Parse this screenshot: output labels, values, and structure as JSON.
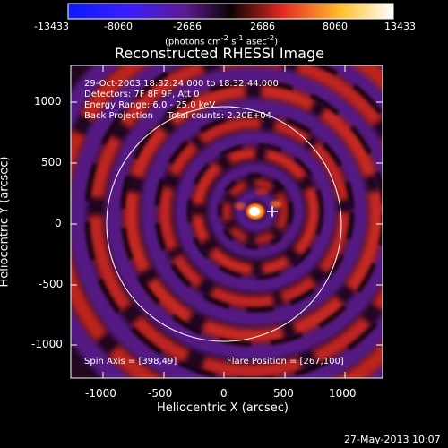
{
  "colorbar": {
    "ticks": [
      "-13433",
      "-8060",
      "-2686",
      "2686",
      "8060",
      "13433"
    ],
    "units_html": "(photons cm<sup>-2</sup> s<sup>-1</sup> asec<sup>-2</sup>)",
    "colors": {
      "min": "#0a1bff",
      "low": "#3a1eff",
      "mid_low": "#5b1c8f",
      "zero": "#0a0305",
      "mid_high": "#e32a23",
      "high": "#ffbf30",
      "max": "#ffffff"
    }
  },
  "plot": {
    "title": "Reconstructed RHESSI Image",
    "info_lines": [
      "29-Oct-2003 18:32:24.000 to 18:32:44.000",
      "Detectors: 7F 8F 9F, Att 0",
      "Energy Range: 6.0 - 25.0 keV",
      "Back Projection     Total counts: 2.20E+04"
    ],
    "spin_axis": "Spin Axis = [398,49]",
    "flare_position": "Flare Position = [267,100]",
    "xlabel": "Heliocentric X (arcsec)",
    "ylabel": "Heliocentric Y (arcsec)",
    "xticks": [
      "-1000",
      "-500",
      "0",
      "500",
      "1000"
    ],
    "yticks": [
      "1000",
      "500",
      "0",
      "-500",
      "-1000"
    ],
    "x_range": [
      -1300,
      1300
    ],
    "y_range": [
      -1300,
      1300
    ],
    "solar_limb_radius_arcsec": 970,
    "source_center_arcsec": [
      267,
      100
    ],
    "cross_marker_arcsec": [
      398,
      49
    ]
  },
  "footer": {
    "timestamp": "27-May-2013 10:07"
  }
}
